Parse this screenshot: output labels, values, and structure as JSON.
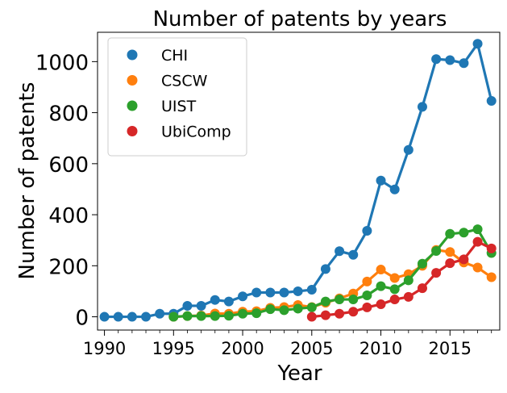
{
  "chart_data": {
    "type": "line",
    "title": "Number of patents by years",
    "xlabel": "Year",
    "ylabel": "Number of patents",
    "xlim": [
      1989.5,
      2018.6
    ],
    "ylim": [
      -52,
      1115
    ],
    "x_ticks": [
      1990,
      1995,
      2000,
      2005,
      2010,
      2015
    ],
    "x_minor_ticks": [
      1991,
      1992,
      1993,
      1994,
      1996,
      1997,
      1998,
      1999,
      2001,
      2002,
      2003,
      2004,
      2006,
      2007,
      2008,
      2009,
      2011,
      2012,
      2013,
      2014,
      2016,
      2017,
      2018
    ],
    "y_ticks": [
      0,
      200,
      400,
      600,
      800,
      1000
    ],
    "grid": false,
    "legend_position": "top-left",
    "series": [
      {
        "name": "CHI",
        "color": "#1f77b4",
        "points": [
          [
            1990,
            0
          ],
          [
            1991,
            0
          ],
          [
            1992,
            0
          ],
          [
            1993,
            0
          ],
          [
            1994,
            12
          ],
          [
            1995,
            12
          ],
          [
            1996,
            43
          ],
          [
            1997,
            43
          ],
          [
            1998,
            66
          ],
          [
            1999,
            60
          ],
          [
            2000,
            80
          ],
          [
            2001,
            95
          ],
          [
            2002,
            95
          ],
          [
            2003,
            95
          ],
          [
            2004,
            100
          ],
          [
            2005,
            106
          ],
          [
            2006,
            187
          ],
          [
            2007,
            257
          ],
          [
            2008,
            243
          ],
          [
            2009,
            337
          ],
          [
            2010,
            534
          ],
          [
            2011,
            499
          ],
          [
            2012,
            654
          ],
          [
            2013,
            823
          ],
          [
            2014,
            1010
          ],
          [
            2015,
            1006
          ],
          [
            2016,
            994
          ],
          [
            2017,
            1070
          ],
          [
            2018,
            846
          ]
        ]
      },
      {
        "name": "CSCW",
        "color": "#ff7f0e",
        "points": [
          [
            1995,
            0
          ],
          [
            1996,
            3
          ],
          [
            1997,
            5
          ],
          [
            1998,
            13
          ],
          [
            1999,
            12
          ],
          [
            2000,
            20
          ],
          [
            2001,
            22
          ],
          [
            2002,
            35
          ],
          [
            2003,
            38
          ],
          [
            2004,
            46
          ],
          [
            2005,
            38
          ],
          [
            2006,
            55
          ],
          [
            2007,
            72
          ],
          [
            2008,
            91
          ],
          [
            2009,
            138
          ],
          [
            2010,
            185
          ],
          [
            2011,
            152
          ],
          [
            2012,
            167
          ],
          [
            2013,
            200
          ],
          [
            2014,
            262
          ],
          [
            2015,
            254
          ],
          [
            2016,
            213
          ],
          [
            2017,
            193
          ],
          [
            2018,
            155
          ]
        ]
      },
      {
        "name": "UIST",
        "color": "#2ca02c",
        "points": [
          [
            1995,
            0
          ],
          [
            1996,
            3
          ],
          [
            1997,
            3
          ],
          [
            1998,
            3
          ],
          [
            1999,
            4
          ],
          [
            2000,
            12
          ],
          [
            2001,
            14
          ],
          [
            2002,
            30
          ],
          [
            2003,
            26
          ],
          [
            2004,
            32
          ],
          [
            2005,
            37
          ],
          [
            2006,
            60
          ],
          [
            2007,
            68
          ],
          [
            2008,
            68
          ],
          [
            2009,
            84
          ],
          [
            2010,
            120
          ],
          [
            2011,
            108
          ],
          [
            2012,
            143
          ],
          [
            2013,
            208
          ],
          [
            2014,
            258
          ],
          [
            2015,
            325
          ],
          [
            2016,
            330
          ],
          [
            2017,
            343
          ],
          [
            2018,
            250
          ]
        ]
      },
      {
        "name": "UbiComp",
        "color": "#d62728",
        "points": [
          [
            2005,
            0
          ],
          [
            2006,
            6
          ],
          [
            2007,
            12
          ],
          [
            2008,
            20
          ],
          [
            2009,
            37
          ],
          [
            2010,
            49
          ],
          [
            2011,
            68
          ],
          [
            2012,
            78
          ],
          [
            2013,
            112
          ],
          [
            2014,
            172
          ],
          [
            2015,
            210
          ],
          [
            2016,
            225
          ],
          [
            2017,
            294
          ],
          [
            2018,
            268
          ]
        ]
      }
    ]
  }
}
